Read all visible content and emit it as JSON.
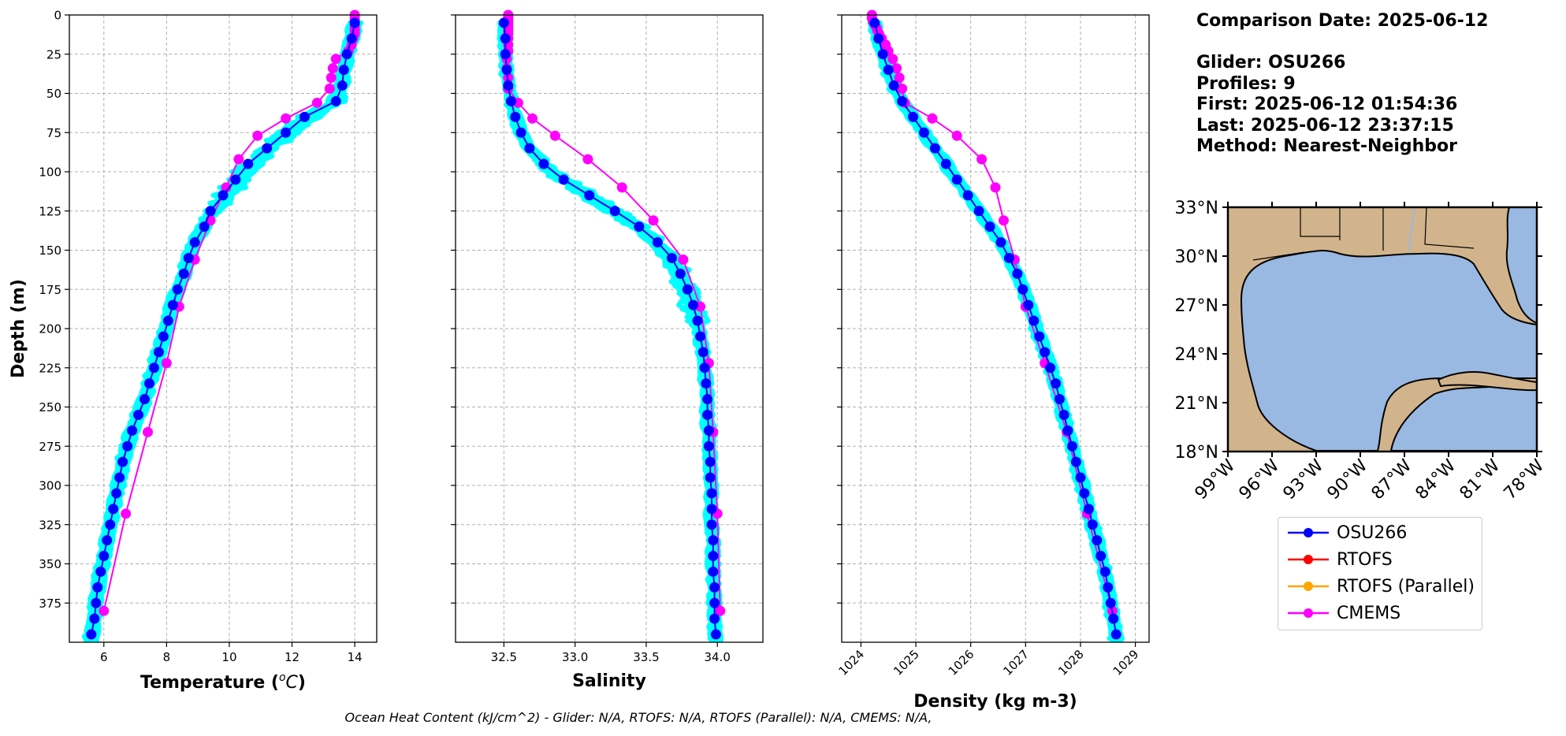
{
  "info": {
    "comparison_date": "Comparison Date: 2025-06-12",
    "glider": "Glider: OSU266",
    "profiles": "Profiles: 9",
    "first": "First: 2025-06-12 01:54:36",
    "last": "Last: 2025-06-12 23:37:15",
    "method": "Method: Nearest-Neighbor"
  },
  "footer": "Ocean Heat Content (kJ/cm^2) - Glider: N/A,  RTOFS: N/A,  RTOFS (Parallel): N/A,  CMEMS: N/A,",
  "legend": [
    {
      "label": "OSU266",
      "color": "#0000ff"
    },
    {
      "label": "RTOFS",
      "color": "#ff0000"
    },
    {
      "label": "RTOFS (Parallel)",
      "color": "#ffa500"
    },
    {
      "label": "CMEMS",
      "color": "#ff00ff"
    }
  ],
  "colors": {
    "glider_raw": "#00ffff",
    "glider_mean": "#0000ff",
    "cmems": "#ff00ff",
    "land": "#d2b48c",
    "ocean": "#99b8e2"
  },
  "chart_data": [
    {
      "type": "line",
      "xlabel_parts": [
        "Temperature (",
        "o",
        "C",
        ")"
      ],
      "ylabel": "Depth (m)",
      "xlim": [
        4.9,
        14.7
      ],
      "ylim": [
        400,
        0
      ],
      "xticks": [
        6,
        8,
        10,
        12,
        14
      ],
      "yticks": [
        0,
        25,
        50,
        75,
        100,
        125,
        150,
        175,
        200,
        225,
        250,
        275,
        300,
        325,
        350,
        375
      ],
      "grid": true,
      "series": [
        {
          "name": "OSU266",
          "color": "#0000ff",
          "depth": [
            5,
            15,
            25,
            35,
            45,
            55,
            65,
            75,
            85,
            95,
            105,
            115,
            125,
            135,
            145,
            155,
            165,
            175,
            185,
            195,
            205,
            215,
            225,
            235,
            245,
            255,
            265,
            275,
            285,
            295,
            305,
            315,
            325,
            335,
            345,
            355,
            365,
            375,
            385,
            395
          ],
          "values": [
            14.0,
            13.9,
            13.75,
            13.65,
            13.6,
            13.4,
            12.4,
            11.8,
            11.2,
            10.6,
            10.2,
            9.8,
            9.4,
            9.2,
            8.9,
            8.7,
            8.55,
            8.35,
            8.2,
            8.05,
            7.9,
            7.75,
            7.6,
            7.45,
            7.3,
            7.1,
            6.9,
            6.75,
            6.6,
            6.5,
            6.4,
            6.3,
            6.2,
            6.1,
            6.0,
            5.9,
            5.8,
            5.75,
            5.7,
            5.6
          ]
        },
        {
          "name": "CMEMS",
          "color": "#ff00ff",
          "depth": [
            0,
            2,
            4,
            6,
            8,
            10,
            12,
            15,
            19,
            23,
            28,
            34,
            40,
            47,
            56,
            66,
            77,
            92,
            110,
            131,
            156,
            186,
            222,
            266,
            318,
            380
          ],
          "values": [
            14.0,
            14.0,
            14.0,
            14.0,
            14.0,
            14.0,
            14.0,
            13.95,
            13.9,
            13.8,
            13.4,
            13.3,
            13.25,
            13.2,
            12.8,
            11.8,
            10.9,
            10.3,
            9.9,
            9.4,
            8.9,
            8.4,
            8.0,
            7.4,
            6.7,
            6.0
          ]
        }
      ]
    },
    {
      "type": "line",
      "xlabel": "Salinity",
      "xlim": [
        32.16,
        34.32
      ],
      "ylim": [
        400,
        0
      ],
      "xticks": [
        32.5,
        33.0,
        33.5,
        34.0
      ],
      "xtick_labels": [
        "32.5",
        "33.0",
        "33.5",
        "34.0"
      ],
      "grid": true,
      "series": [
        {
          "name": "OSU266",
          "color": "#0000ff",
          "depth": [
            5,
            15,
            25,
            35,
            45,
            55,
            65,
            75,
            85,
            95,
            105,
            115,
            125,
            135,
            145,
            155,
            165,
            175,
            185,
            195,
            205,
            215,
            225,
            235,
            245,
            255,
            265,
            275,
            285,
            295,
            305,
            315,
            325,
            335,
            345,
            355,
            365,
            375,
            385,
            395
          ],
          "values": [
            32.5,
            32.51,
            32.51,
            32.52,
            32.53,
            32.55,
            32.58,
            32.62,
            32.68,
            32.78,
            32.92,
            33.1,
            33.28,
            33.45,
            33.58,
            33.68,
            33.74,
            33.79,
            33.83,
            33.86,
            33.88,
            33.9,
            33.91,
            33.92,
            33.93,
            33.93,
            33.94,
            33.94,
            33.95,
            33.95,
            33.96,
            33.96,
            33.96,
            33.97,
            33.97,
            33.97,
            33.98,
            33.98,
            33.98,
            33.99
          ]
        },
        {
          "name": "CMEMS",
          "color": "#ff00ff",
          "depth": [
            0,
            2,
            4,
            6,
            8,
            10,
            12,
            15,
            19,
            23,
            28,
            34,
            40,
            47,
            56,
            66,
            77,
            92,
            110,
            131,
            156,
            186,
            222,
            266,
            318,
            380
          ],
          "values": [
            32.53,
            32.53,
            32.53,
            32.53,
            32.53,
            32.53,
            32.53,
            32.53,
            32.53,
            32.53,
            32.52,
            32.52,
            32.53,
            32.53,
            32.6,
            32.7,
            32.86,
            33.09,
            33.33,
            33.55,
            33.76,
            33.88,
            33.94,
            33.97,
            34.0,
            34.02
          ]
        }
      ]
    },
    {
      "type": "line",
      "xlabel": "Density (kg m-3)",
      "xlim": [
        1023.65,
        1029.25
      ],
      "ylim": [
        400,
        0
      ],
      "xticks": [
        1024,
        1025,
        1026,
        1027,
        1028,
        1029
      ],
      "xtick_labels": [
        "1024",
        "1025",
        "1026",
        "1027",
        "1028",
        "1029"
      ],
      "grid": true,
      "series": [
        {
          "name": "OSU266",
          "color": "#0000ff",
          "depth": [
            5,
            15,
            25,
            35,
            45,
            55,
            65,
            75,
            85,
            95,
            105,
            115,
            125,
            135,
            145,
            155,
            165,
            175,
            185,
            195,
            205,
            215,
            225,
            235,
            245,
            255,
            265,
            275,
            285,
            295,
            305,
            315,
            325,
            335,
            345,
            355,
            365,
            375,
            385,
            395
          ],
          "values": [
            1024.25,
            1024.32,
            1024.4,
            1024.5,
            1024.6,
            1024.75,
            1024.95,
            1025.15,
            1025.35,
            1025.55,
            1025.75,
            1025.95,
            1026.15,
            1026.35,
            1026.55,
            1026.7,
            1026.85,
            1026.95,
            1027.05,
            1027.15,
            1027.25,
            1027.35,
            1027.45,
            1027.55,
            1027.62,
            1027.7,
            1027.77,
            1027.85,
            1027.92,
            1028.0,
            1028.07,
            1028.15,
            1028.22,
            1028.3,
            1028.37,
            1028.45,
            1028.5,
            1028.55,
            1028.6,
            1028.65
          ]
        },
        {
          "name": "CMEMS",
          "color": "#ff00ff",
          "depth": [
            0,
            2,
            4,
            6,
            8,
            10,
            12,
            15,
            19,
            23,
            28,
            34,
            40,
            47,
            56,
            66,
            77,
            92,
            110,
            131,
            156,
            186,
            222,
            266,
            318,
            380
          ],
          "values": [
            1024.2,
            1024.2,
            1024.22,
            1024.25,
            1024.28,
            1024.3,
            1024.33,
            1024.38,
            1024.45,
            1024.5,
            1024.58,
            1024.65,
            1024.7,
            1024.75,
            1024.8,
            1025.3,
            1025.75,
            1026.2,
            1026.45,
            1026.6,
            1026.8,
            1027.0,
            1027.35,
            1027.75,
            1028.12,
            1028.58
          ]
        }
      ]
    }
  ],
  "map": {
    "lat_labels": [
      "33°N",
      "30°N",
      "27°N",
      "24°N",
      "21°N",
      "18°N"
    ],
    "lon_labels": [
      "99°W",
      "96°W",
      "93°W",
      "90°W",
      "87°W",
      "84°W",
      "81°W",
      "78°W"
    ]
  }
}
